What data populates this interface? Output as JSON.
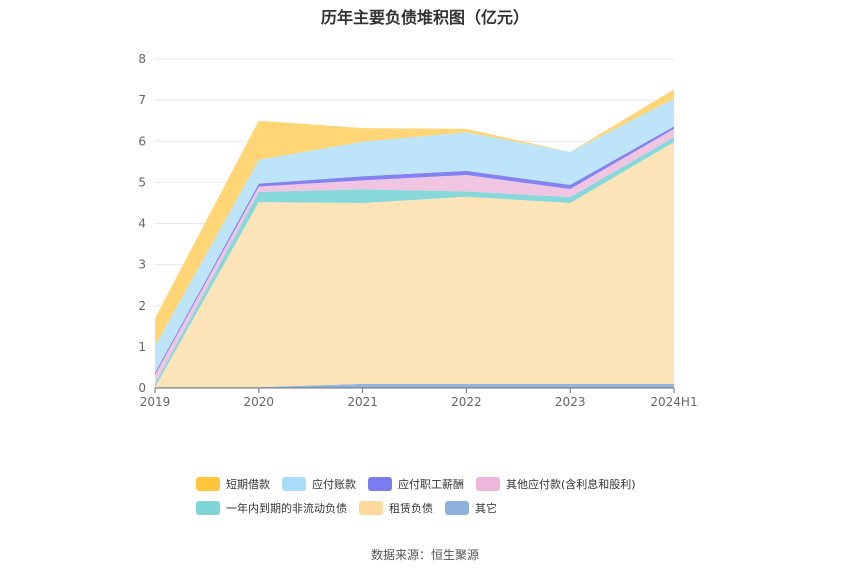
{
  "title": "历年主要负债堆积图（亿元）",
  "source": "数据来源：恒生聚源",
  "chart_data": {
    "type": "area",
    "stacked": true,
    "title": "历年主要负债堆积图（亿元）",
    "categories": [
      "2019",
      "2020",
      "2021",
      "2022",
      "2023",
      "2024H1"
    ],
    "ylim": [
      0,
      8
    ],
    "yticks": [
      0,
      1,
      2,
      3,
      4,
      5,
      6,
      7,
      8
    ],
    "grid": true,
    "legend_position": "bottom",
    "series": [
      {
        "name": "其它",
        "color": "#8eb0dc",
        "values": [
          0.02,
          0.02,
          0.1,
          0.1,
          0.1,
          0.1
        ]
      },
      {
        "name": "租赁负债",
        "color": "#fde2b4",
        "values": [
          0.0,
          4.5,
          4.4,
          4.55,
          4.4,
          5.88
        ]
      },
      {
        "name": "一年内到期的非流动负债",
        "color": "#7fd6d8",
        "values": [
          0.08,
          0.25,
          0.33,
          0.13,
          0.14,
          0.12
        ]
      },
      {
        "name": "其他应付款(含利息和股利)",
        "color": "#efc2e0",
        "values": [
          0.22,
          0.13,
          0.22,
          0.4,
          0.2,
          0.2
        ]
      },
      {
        "name": "应付职工薪酬",
        "color": "#7b7cf0",
        "values": [
          0.05,
          0.07,
          0.1,
          0.1,
          0.1,
          0.06
        ]
      },
      {
        "name": "应付账款",
        "color": "#b9e3f9",
        "values": [
          0.65,
          0.58,
          0.84,
          0.94,
          0.8,
          0.68
        ]
      },
      {
        "name": "短期借款",
        "color": "#ffd36e",
        "values": [
          0.68,
          0.95,
          0.33,
          0.08,
          0.0,
          0.22
        ]
      }
    ]
  },
  "legend": {
    "rows": [
      [
        {
          "label": "短期借款",
          "color": "#ffc53d"
        },
        {
          "label": "应付账款",
          "color": "#a8dcf8"
        },
        {
          "label": "应付职工薪酬",
          "color": "#7b7cf0"
        },
        {
          "label": "其他应付款(含利息和股利)",
          "color": "#efb6dc"
        }
      ],
      [
        {
          "label": "一年内到期的非流动负债",
          "color": "#7fd6d8"
        },
        {
          "label": "租赁负债",
          "color": "#fdd99e"
        },
        {
          "label": "其它",
          "color": "#8eb0dc"
        }
      ]
    ]
  }
}
